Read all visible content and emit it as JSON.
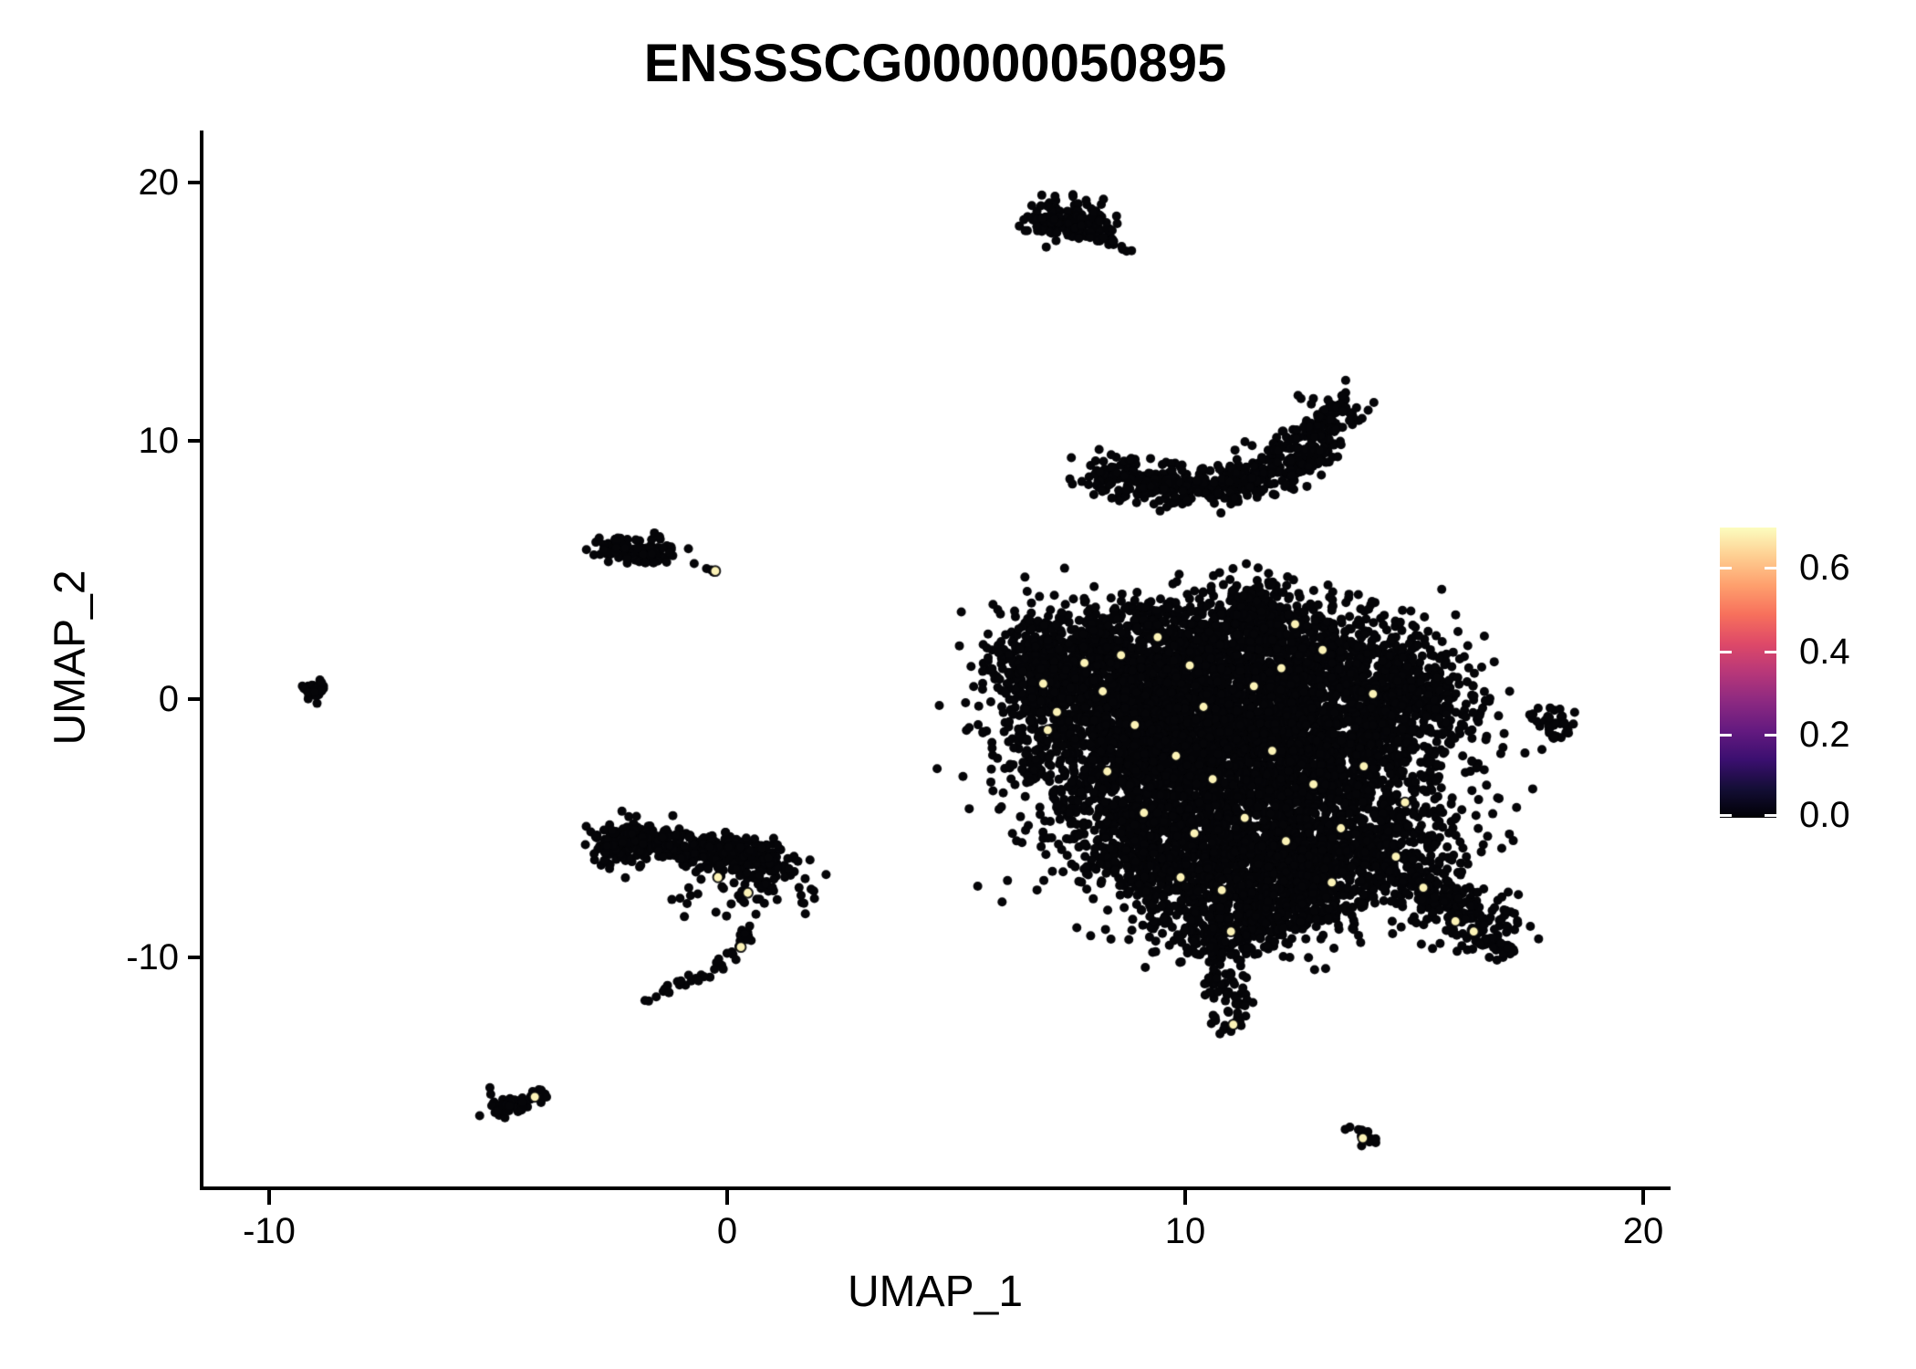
{
  "title": "ENSSSCG00000050895",
  "axes": {
    "x_label": "UMAP_1",
    "y_label": "UMAP_2",
    "x_tick_labels": [
      "-10",
      "0",
      "10",
      "20"
    ],
    "y_tick_labels": [
      "20",
      "10",
      "0",
      "-10"
    ]
  },
  "legend": {
    "tick_labels": [
      "0.6",
      "0.4",
      "0.2",
      "0.0"
    ],
    "tick_values": [
      0.6,
      0.4,
      0.2,
      0.0
    ],
    "max_value": 0.697,
    "colormap": "magma",
    "stops": [
      "#000004",
      "#140E36",
      "#3B0F70",
      "#641A80",
      "#8C2981",
      "#B73779",
      "#DE4968",
      "#F7705C",
      "#FE9F6D",
      "#FECE91",
      "#FCFDBF"
    ]
  },
  "chart_data": {
    "type": "scatter",
    "title": "ENSSSCG00000050895",
    "xlabel": "UMAP_1",
    "ylabel": "UMAP_2",
    "x_ticks": [
      -10,
      0,
      10,
      20
    ],
    "y_ticks": [
      20,
      10,
      0,
      -10
    ],
    "xlim": [
      -11.5,
      20.6
    ],
    "ylim": [
      -19.1,
      22.0
    ],
    "grid": false,
    "legend_position": "right",
    "point_color": "#050508",
    "highlight_color": "#FBF2B6",
    "colorbar": {
      "min": 0.0,
      "max": 0.697,
      "ticks": [
        0.0,
        0.2,
        0.4,
        0.6
      ],
      "colormap": "magma"
    },
    "clusters": {
      "blobs": [
        {
          "x": 7.3,
          "y": 18.75,
          "rx": 0.5,
          "ry": 0.38,
          "n": 75
        },
        {
          "x": 7.72,
          "y": 18.25,
          "rx": 0.36,
          "ry": 0.3,
          "n": 42
        },
        {
          "x": 7.05,
          "y": 18.4,
          "rx": 0.24,
          "ry": 0.24,
          "n": 20
        },
        {
          "x": -9.05,
          "y": 0.35,
          "rx": 0.22,
          "ry": 0.2,
          "n": 18
        },
        {
          "x": -8.82,
          "y": 0.52,
          "rx": 0.14,
          "ry": 0.14,
          "n": 8
        },
        {
          "x": -2.1,
          "y": 5.8,
          "rx": 0.45,
          "ry": 0.22,
          "n": 60
        },
        {
          "x": -1.65,
          "y": 5.55,
          "rx": 0.3,
          "ry": 0.2,
          "n": 26
        },
        {
          "x": -2.45,
          "y": 5.95,
          "rx": 0.2,
          "ry": 0.15,
          "n": 12
        },
        {
          "x": -2.2,
          "y": -5.75,
          "rx": 0.42,
          "ry": 0.4,
          "n": 70
        },
        {
          "x": 0.1,
          "y": -7.4,
          "rx": 0.95,
          "ry": 0.72,
          "n": 52
        },
        {
          "x": -4.85,
          "y": -15.9,
          "rx": 0.26,
          "ry": 0.2,
          "n": 15
        },
        {
          "x": 18.05,
          "y": -0.8,
          "rx": 0.3,
          "ry": 0.32,
          "n": 26
        },
        {
          "x": 17.95,
          "y": -1.45,
          "rx": 0.12,
          "ry": 0.3,
          "n": 8
        },
        {
          "x": 17.55,
          "y": -0.6,
          "rx": 0.07,
          "ry": 0.07,
          "n": 3
        },
        {
          "x": 7.6,
          "y": 0.2,
          "rx": 1.0,
          "ry": 1.6,
          "n": 650
        },
        {
          "x": 6.9,
          "y": 1.7,
          "rx": 0.55,
          "ry": 0.6,
          "n": 120
        },
        {
          "x": 6.6,
          "y": 0.2,
          "rx": 0.35,
          "ry": 0.8,
          "n": 30
        },
        {
          "x": 9.0,
          "y": 1.5,
          "rx": 1.2,
          "ry": 1.2,
          "n": 500
        },
        {
          "x": 10.6,
          "y": 2.2,
          "rx": 1.3,
          "ry": 1.0,
          "n": 520
        },
        {
          "x": 11.75,
          "y": 3.75,
          "rx": 0.4,
          "ry": 0.6,
          "n": 70
        },
        {
          "x": 12.6,
          "y": 1.5,
          "rx": 1.4,
          "ry": 1.2,
          "n": 600
        },
        {
          "x": 14.3,
          "y": 0.6,
          "rx": 1.0,
          "ry": 1.0,
          "n": 300
        },
        {
          "x": 15.2,
          "y": -0.5,
          "rx": 0.7,
          "ry": 0.9,
          "n": 160
        },
        {
          "x": 9.8,
          "y": -0.6,
          "rx": 1.3,
          "ry": 1.2,
          "n": 550
        },
        {
          "x": 11.8,
          "y": -0.9,
          "rx": 1.4,
          "ry": 1.2,
          "n": 550
        },
        {
          "x": 13.5,
          "y": -2.4,
          "rx": 1.4,
          "ry": 1.4,
          "n": 600
        },
        {
          "x": 10.6,
          "y": -2.8,
          "rx": 1.5,
          "ry": 1.3,
          "n": 600
        },
        {
          "x": 8.7,
          "y": -3.6,
          "rx": 1.2,
          "ry": 1.4,
          "n": 500
        },
        {
          "x": 11.7,
          "y": -4.8,
          "rx": 1.5,
          "ry": 1.4,
          "n": 600
        },
        {
          "x": 13.8,
          "y": -5.5,
          "rx": 1.2,
          "ry": 1.1,
          "n": 400
        },
        {
          "x": 9.9,
          "y": -6.3,
          "rx": 1.2,
          "ry": 1.1,
          "n": 450
        },
        {
          "x": 11.3,
          "y": -7.6,
          "rx": 1.3,
          "ry": 1.0,
          "n": 420
        },
        {
          "x": 12.6,
          "y": -7.0,
          "rx": 1.0,
          "ry": 0.9,
          "n": 300
        },
        {
          "x": 10.9,
          "y": -8.9,
          "rx": 0.8,
          "ry": 0.6,
          "n": 150
        }
      ],
      "curves": [
        {
          "pts": [
            [
              7.95,
              17.95
            ],
            [
              8.35,
              17.7
            ],
            [
              8.8,
              17.3
            ]
          ],
          "w": 0.1,
          "n": 22
        },
        {
          "pts": [
            [
              8.05,
              8.9
            ],
            [
              8.8,
              8.6
            ],
            [
              9.6,
              8.35
            ],
            [
              10.4,
              8.25
            ],
            [
              11.2,
              8.4
            ],
            [
              11.9,
              8.8
            ],
            [
              12.55,
              9.5
            ],
            [
              13.05,
              10.3
            ],
            [
              13.3,
              11.45
            ]
          ],
          "w": 0.38,
          "n": 560
        },
        {
          "pts": [
            [
              8.3,
              8.2
            ],
            [
              9.6,
              7.9
            ],
            [
              11.0,
              8.0
            ]
          ],
          "w": 0.3,
          "n": 40
        },
        {
          "pts": [
            [
              -2.55,
              -5.3
            ],
            [
              -1.8,
              -5.5
            ],
            [
              -1.0,
              -5.65
            ],
            [
              -0.2,
              -5.85
            ],
            [
              0.5,
              -6.1
            ],
            [
              1.05,
              -6.55
            ]
          ],
          "w": 0.35,
          "n": 430
        },
        {
          "pts": [
            [
              0.55,
              -8.6
            ],
            [
              0.35,
              -9.5
            ],
            [
              -0.2,
              -10.3
            ],
            [
              -0.95,
              -11.0
            ],
            [
              -1.8,
              -11.7
            ]
          ],
          "w": 0.13,
          "n": 42
        },
        {
          "pts": [
            [
              -5.3,
              -15.2
            ],
            [
              -5.0,
              -15.5
            ],
            [
              -4.75,
              -15.85
            ],
            [
              -4.5,
              -15.6
            ],
            [
              -4.2,
              -15.45
            ],
            [
              -3.95,
              -15.35
            ]
          ],
          "w": 0.14,
          "n": 34
        },
        {
          "pts": [
            [
              13.6,
              -16.55
            ],
            [
              13.85,
              -16.9
            ],
            [
              14.1,
              -17.25
            ]
          ],
          "w": 0.1,
          "n": 14
        },
        {
          "pts": [
            [
              6.35,
              2.05
            ],
            [
              6.7,
              2.2
            ],
            [
              7.1,
              2.1
            ]
          ],
          "w": 0.14,
          "n": 20
        },
        {
          "pts": [
            [
              10.6,
              -9.2
            ],
            [
              10.85,
              -10.3
            ],
            [
              11.0,
              -11.4
            ],
            [
              11.05,
              -12.8
            ]
          ],
          "w": 0.27,
          "n": 95
        },
        {
          "pts": [
            [
              14.3,
              -6.3
            ],
            [
              15.2,
              -7.2
            ],
            [
              16.0,
              -8.2
            ],
            [
              16.7,
              -9.2
            ]
          ],
          "w": 0.45,
          "n": 270
        },
        {
          "pts": [
            [
              16.8,
              -9.4
            ],
            [
              17.05,
              -9.9
            ]
          ],
          "w": 0.14,
          "n": 14
        }
      ],
      "points": [
        [
          6.85,
          19.1
        ],
        [
          -0.72,
          5.25
        ],
        [
          -0.45,
          5.05
        ],
        [
          -0.35,
          5.0
        ],
        [
          -0.3,
          4.92
        ],
        [
          13.42,
          11.75
        ]
      ],
      "highlights": [
        [
          -0.26,
          4.96
        ],
        [
          -0.2,
          -6.9
        ],
        [
          0.45,
          -7.5
        ],
        [
          0.3,
          -9.6
        ],
        [
          -4.2,
          -15.4
        ],
        [
          13.88,
          -17.0
        ],
        [
          6.9,
          0.6
        ],
        [
          7.2,
          -0.5
        ],
        [
          7.0,
          -1.2
        ],
        [
          8.2,
          0.3
        ],
        [
          8.6,
          1.7
        ],
        [
          9.4,
          2.4
        ],
        [
          12.4,
          2.9
        ],
        [
          10.1,
          1.3
        ],
        [
          11.5,
          0.5
        ],
        [
          13.0,
          1.9
        ],
        [
          14.1,
          0.2
        ],
        [
          8.9,
          -1.0
        ],
        [
          9.8,
          -2.2
        ],
        [
          10.6,
          -3.1
        ],
        [
          11.9,
          -2.0
        ],
        [
          12.8,
          -3.3
        ],
        [
          13.9,
          -2.6
        ],
        [
          9.1,
          -4.4
        ],
        [
          10.2,
          -5.2
        ],
        [
          11.3,
          -4.6
        ],
        [
          12.2,
          -5.5
        ],
        [
          13.4,
          -5.0
        ],
        [
          14.6,
          -6.1
        ],
        [
          9.9,
          -6.9
        ],
        [
          10.8,
          -7.4
        ],
        [
          11.0,
          -9.0
        ],
        [
          11.05,
          -12.6
        ],
        [
          15.9,
          -8.6
        ],
        [
          16.3,
          -9.0
        ],
        [
          8.3,
          -2.8
        ],
        [
          7.8,
          1.4
        ],
        [
          12.1,
          1.2
        ],
        [
          14.8,
          -4.0
        ],
        [
          13.2,
          -7.1
        ],
        [
          10.4,
          -0.3
        ],
        [
          15.2,
          -7.3
        ]
      ]
    }
  }
}
